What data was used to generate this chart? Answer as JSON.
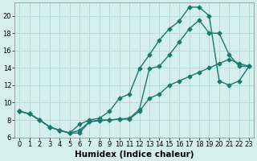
{
  "xlabel": "Humidex (Indice chaleur)",
  "background_color": "#d5efee",
  "grid_color": "#b8dbd9",
  "line_color": "#1a7a6e",
  "xlim": [
    -0.5,
    23.5
  ],
  "ylim": [
    6,
    21.5
  ],
  "xticks": [
    0,
    1,
    2,
    3,
    4,
    5,
    6,
    7,
    8,
    9,
    10,
    11,
    12,
    13,
    14,
    15,
    16,
    17,
    18,
    19,
    20,
    21,
    22,
    23
  ],
  "yticks": [
    6,
    8,
    10,
    12,
    14,
    16,
    18,
    20
  ],
  "line1_x": [
    0,
    1,
    2,
    3,
    4,
    5,
    6,
    7,
    8,
    9,
    10,
    11,
    12,
    13,
    14,
    15,
    16,
    17,
    18,
    19,
    20,
    21,
    22,
    23
  ],
  "line1_y": [
    9.0,
    8.7,
    8.0,
    7.2,
    6.8,
    6.5,
    6.8,
    7.8,
    8.0,
    8.0,
    8.1,
    8.1,
    9.0,
    10.5,
    11.0,
    12.0,
    12.5,
    13.0,
    13.5,
    14.0,
    14.5,
    15.0,
    14.5,
    14.2
  ],
  "line2_x": [
    0,
    1,
    2,
    3,
    4,
    5,
    6,
    7,
    8,
    9,
    10,
    11,
    12,
    13,
    14,
    15,
    16,
    17,
    18,
    19,
    20,
    21,
    22,
    23
  ],
  "line2_y": [
    9.0,
    8.7,
    8.0,
    7.2,
    6.8,
    6.5,
    7.5,
    8.0,
    8.2,
    9.0,
    10.5,
    11.0,
    13.9,
    15.5,
    17.2,
    18.5,
    19.4,
    21.0,
    21.0,
    20.0,
    12.5,
    12.0,
    12.5,
    14.2
  ],
  "line3_x": [
    0,
    1,
    2,
    3,
    4,
    5,
    6,
    7,
    8,
    9,
    10,
    11,
    12,
    13,
    14,
    15,
    16,
    17,
    18,
    19,
    20,
    21,
    22,
    23
  ],
  "line3_y": [
    9.0,
    8.7,
    8.0,
    7.2,
    6.8,
    6.5,
    6.5,
    7.8,
    7.9,
    8.0,
    8.1,
    8.2,
    9.2,
    13.9,
    14.2,
    15.5,
    17.0,
    18.5,
    19.5,
    18.0,
    18.0,
    15.5,
    14.2,
    14.2
  ],
  "marker": "D",
  "markersize": 2.5,
  "linewidth": 1.0,
  "tick_fontsize": 6,
  "xlabel_fontsize": 7.5
}
